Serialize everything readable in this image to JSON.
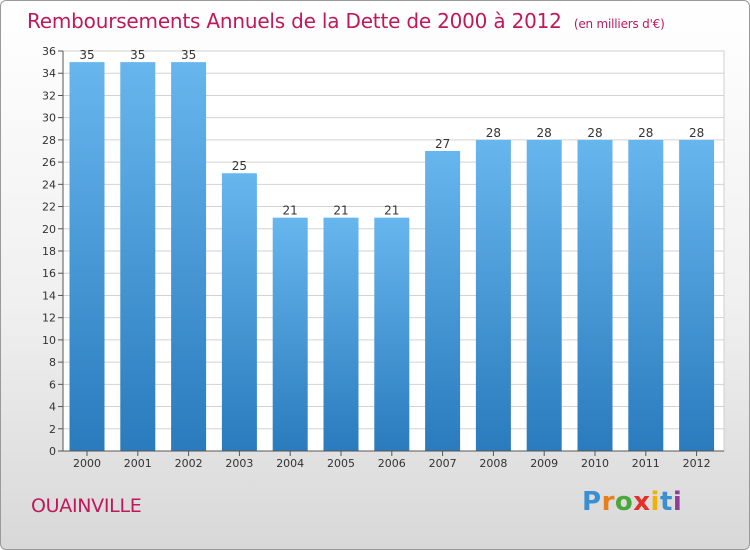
{
  "header": {
    "title": "Remboursements Annuels de la Dette de 2000 à 2012",
    "unit": "(en milliers d'€)"
  },
  "footer": {
    "commune": "OUAINVILLE",
    "logo": [
      "P",
      "r",
      "o",
      "x",
      "i",
      "t",
      "i"
    ],
    "logo_colors": [
      "#3a8fd0",
      "#e87f1b",
      "#49a83a",
      "#e3312a",
      "#f1b100",
      "#3a8fd0",
      "#8d3f97"
    ]
  },
  "colors": {
    "bar_top": "#67b6ee",
    "bar_bottom": "#2a7bbd",
    "title": "#c0185a",
    "axis": "#555555",
    "grid": "#d2d2d2"
  },
  "chart_data": {
    "type": "bar",
    "categories": [
      "2000",
      "2001",
      "2002",
      "2003",
      "2004",
      "2005",
      "2006",
      "2007",
      "2008",
      "2009",
      "2010",
      "2011",
      "2012"
    ],
    "values": [
      35,
      35,
      35,
      25,
      21,
      21,
      21,
      27,
      28,
      28,
      28,
      28,
      28
    ],
    "data_labels": [
      "35",
      "35",
      "35",
      "25",
      "21",
      "21",
      "21",
      "27",
      "28",
      "28",
      "28",
      "28",
      "28"
    ],
    "ylim": [
      0,
      36
    ],
    "yticks": [
      "0",
      "2",
      "4",
      "6",
      "8",
      "10",
      "12",
      "14",
      "16",
      "18",
      "20",
      "22",
      "24",
      "26",
      "28",
      "30",
      "32",
      "34",
      "36"
    ],
    "grid": true,
    "title": "Remboursements Annuels de la Dette de 2000 à 2012",
    "xlabel": "",
    "ylabel": ""
  }
}
